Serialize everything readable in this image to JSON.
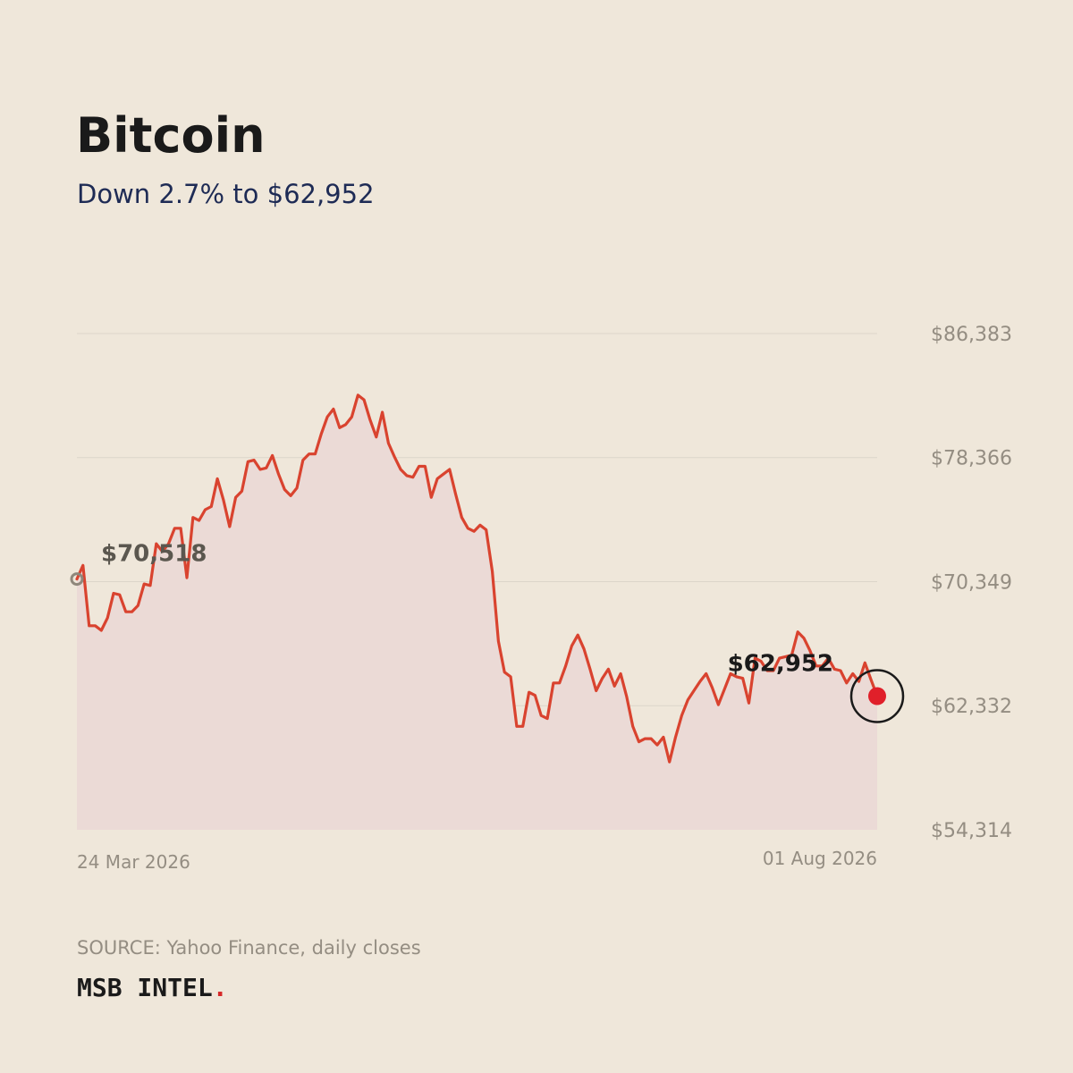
{
  "header": {
    "title": "Bitcoin",
    "subtitle": "Down 2.7% to $62,952"
  },
  "footer": {
    "source": "SOURCE: Yahoo Finance, daily closes",
    "brand": "MSB INTEL",
    "brand_dot": "."
  },
  "colors": {
    "background": "#efe7da",
    "line": "#d9432f",
    "area": "#ebdad6",
    "grid": "#dcd5c9",
    "tick_text": "#948d82",
    "start_marker": "#8f877b",
    "end_marker": "#e0202a",
    "highlight_ring": "#1a1a1a"
  },
  "chart_data": {
    "type": "area",
    "title": "Bitcoin",
    "subtitle": "Down 2.7% to $62,952",
    "x_start_label": "24 Mar 2026",
    "x_end_label": "01 Aug 2026",
    "ylim": [
      54314,
      86383
    ],
    "y_ticks": [
      54314,
      62332,
      70349,
      78366,
      86383
    ],
    "y_tick_labels": [
      "$54,314",
      "$62,332",
      "$70,349",
      "$78,366",
      "$86,383"
    ],
    "grid": true,
    "start_label": "$70,518",
    "end_label": "$62,952",
    "start_value": 70518,
    "end_value": 62952,
    "values": [
      70518,
      71400,
      67500,
      67500,
      67200,
      68000,
      69600,
      69500,
      68400,
      68400,
      68800,
      70200,
      70100,
      72800,
      72300,
      72800,
      73800,
      73800,
      70600,
      74500,
      74300,
      75000,
      75200,
      77000,
      75600,
      73900,
      75800,
      76200,
      78100,
      78200,
      77600,
      77700,
      78500,
      77300,
      76300,
      75900,
      76400,
      78200,
      78600,
      78600,
      79900,
      81000,
      81500,
      80300,
      80500,
      81000,
      82400,
      82100,
      80800,
      79700,
      81300,
      79300,
      78400,
      77600,
      77200,
      77100,
      77800,
      77800,
      75800,
      77000,
      77300,
      77600,
      76000,
      74500,
      73800,
      73600,
      74000,
      73700,
      71000,
      66500,
      64500,
      64200,
      61000,
      61000,
      63200,
      63000,
      61700,
      61500,
      63800,
      63800,
      64900,
      66200,
      66900,
      66000,
      64700,
      63300,
      64100,
      64700,
      63600,
      64400,
      62900,
      61000,
      60000,
      60200,
      60200,
      59800,
      60300,
      58700,
      60300,
      61700,
      62700,
      63300,
      63900,
      64400,
      63500,
      62400,
      63400,
      64400,
      64200,
      64100,
      62500,
      65400,
      65200,
      64600,
      64600,
      65400,
      65500,
      65600,
      67100,
      66700,
      65900,
      64900,
      64900,
      65400,
      64700,
      64600,
      63800,
      64400,
      63900,
      65100,
      64000,
      62952
    ]
  }
}
